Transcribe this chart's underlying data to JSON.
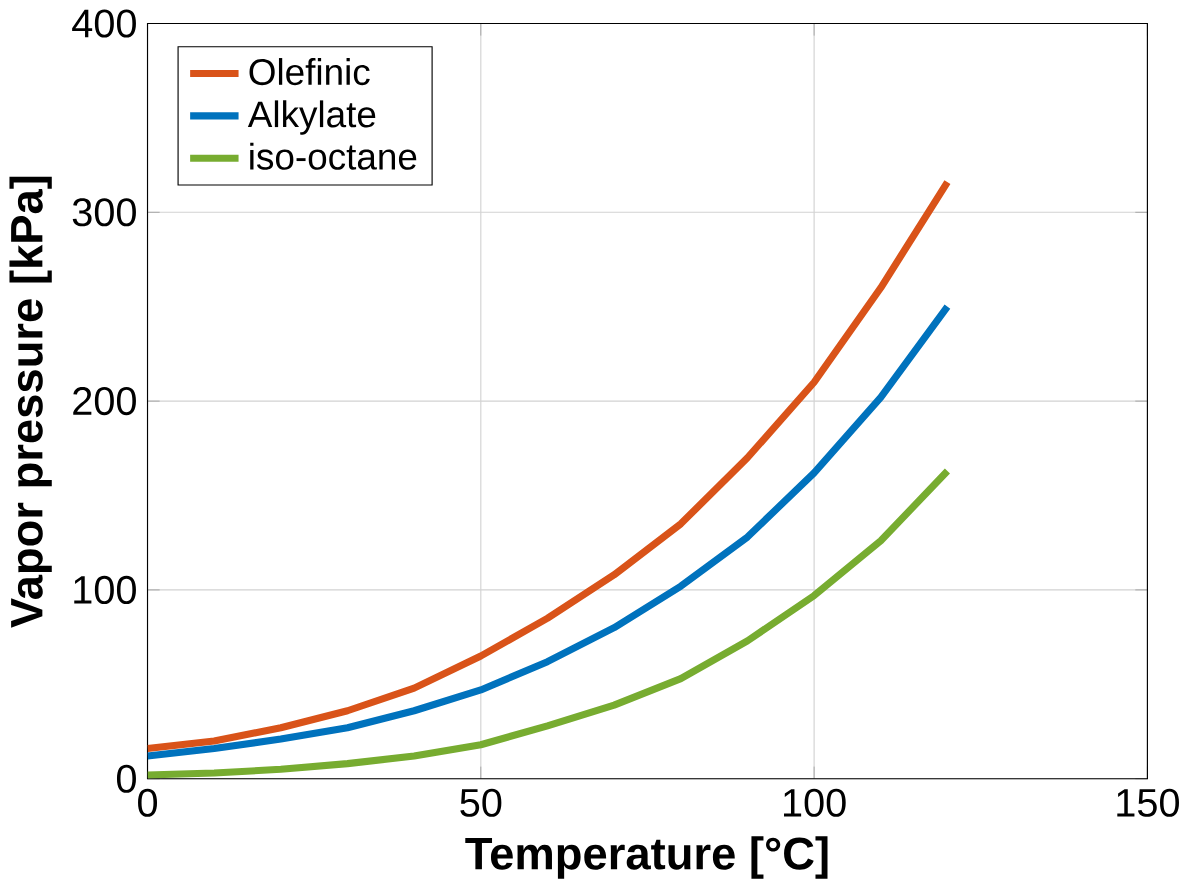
{
  "chart_data": {
    "type": "line",
    "xlabel": "Temperature [°C]",
    "ylabel": "Vapor pressure [kPa]",
    "x": [
      0,
      10,
      20,
      30,
      40,
      50,
      60,
      70,
      80,
      90,
      100,
      110,
      120
    ],
    "series": [
      {
        "name": "Olefinic",
        "color": "#d95319",
        "values": [
          16,
          20,
          27,
          36,
          48,
          65,
          85,
          108,
          135,
          170,
          210,
          260,
          316
        ]
      },
      {
        "name": "Alkylate",
        "color": "#0072bd",
        "values": [
          12,
          16,
          21,
          27,
          36,
          47,
          62,
          80,
          102,
          128,
          162,
          202,
          250
        ]
      },
      {
        "name": "iso-octane",
        "color": "#77ac30",
        "values": [
          2,
          3,
          5,
          8,
          12,
          18,
          28,
          39,
          53,
          73,
          97,
          126,
          163
        ]
      }
    ],
    "xlim": [
      0,
      150
    ],
    "ylim": [
      0,
      400
    ],
    "xticks": [
      0,
      50,
      100,
      150
    ],
    "yticks": [
      0,
      100,
      200,
      300,
      400
    ],
    "grid": true,
    "legend": "top left",
    "marker": "none",
    "line_style": "solid"
  }
}
